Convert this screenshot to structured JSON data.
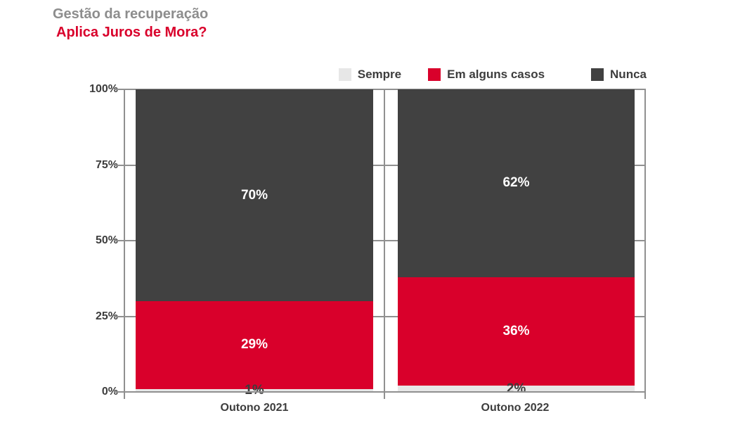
{
  "title": {
    "line1": "Gestão da recuperação",
    "line2": "Aplica Juros de Mora?"
  },
  "colors": {
    "accent_red": "#d9002b",
    "dark_gray": "#414141",
    "light_gray": "#e7e7e7",
    "title_gray": "#8d8d8d",
    "axis_line": "#909090",
    "text_dark": "#3d3d3d"
  },
  "chart_data": {
    "type": "bar",
    "subtype": "stacked_100_percent",
    "title": "Gestão da recuperação — Aplica Juros de Mora?",
    "categories": [
      "Outono 2021",
      "Outono 2022"
    ],
    "series": [
      {
        "name": "Sempre",
        "color": "#e7e7e7",
        "label_color": "#3d3d3d",
        "values": [
          1,
          2
        ]
      },
      {
        "name": "Em alguns casos",
        "color": "#d9002b",
        "label_color": "#ffffff",
        "values": [
          29,
          36
        ]
      },
      {
        "name": "Nunca",
        "color": "#414141",
        "label_color": "#ffffff",
        "values": [
          70,
          62
        ]
      }
    ],
    "yticks": [
      "0%",
      "25%",
      "50%",
      "75%",
      "100%"
    ],
    "ylim": [
      0,
      100
    ],
    "grid": true,
    "legend_position": "top",
    "value_label_suffix": "%"
  }
}
